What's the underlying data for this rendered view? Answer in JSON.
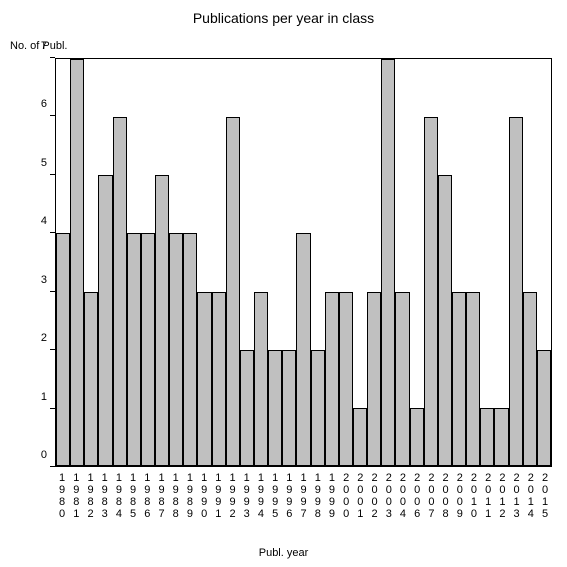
{
  "chart": {
    "type": "bar",
    "title": "Publications per year in class",
    "title_fontsize": 14,
    "ylabel": "No. of Publ.",
    "xlabel": "Publ. year",
    "label_fontsize": 11,
    "background_color": "#ffffff",
    "bar_color": "#c0c0c0",
    "bar_border_color": "#000000",
    "axis_color": "#000000",
    "text_color": "#000000",
    "ylim": [
      0,
      7
    ],
    "ytick_step": 1,
    "yticks": [
      0,
      1,
      2,
      3,
      4,
      5,
      6,
      7
    ],
    "categories": [
      "1980",
      "1981",
      "1982",
      "1983",
      "1984",
      "1985",
      "1986",
      "1987",
      "1988",
      "1989",
      "1990",
      "1991",
      "1992",
      "1993",
      "1994",
      "1995",
      "1996",
      "1997",
      "1998",
      "1999",
      "2000",
      "2001",
      "2002",
      "2003",
      "2004",
      "2006",
      "2007",
      "2008",
      "2009",
      "2010",
      "2011",
      "2012",
      "2013",
      "2014",
      "2015"
    ],
    "values": [
      4,
      7,
      3,
      5,
      6,
      4,
      4,
      5,
      4,
      4,
      3,
      3,
      6,
      2,
      3,
      2,
      2,
      4,
      2,
      3,
      3,
      1,
      3,
      7,
      3,
      1,
      6,
      5,
      3,
      3,
      1,
      1,
      6,
      3,
      2
    ],
    "bar_width": 1.0
  }
}
